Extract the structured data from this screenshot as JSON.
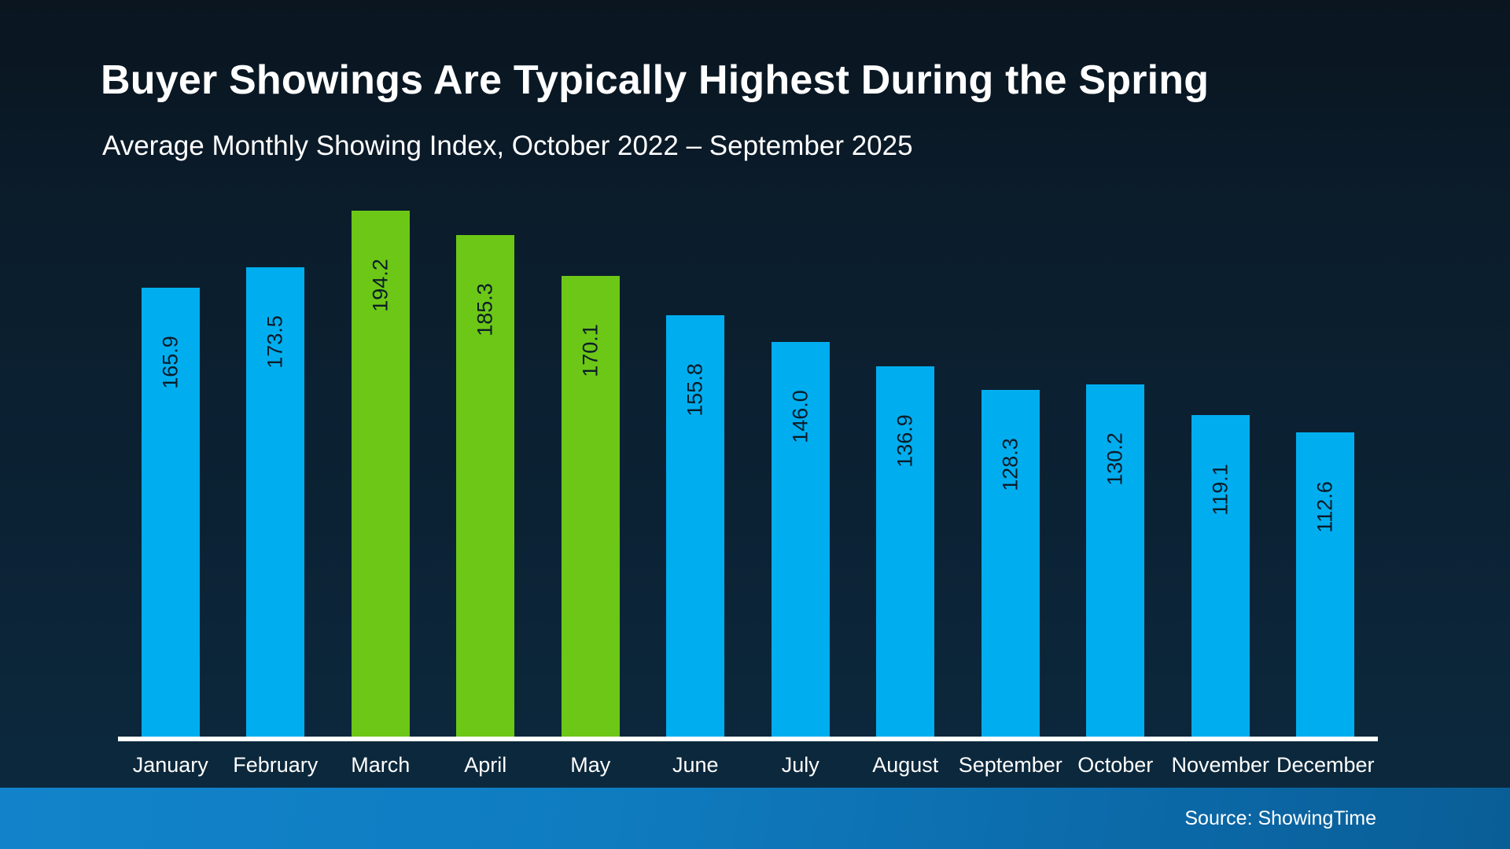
{
  "slide": {
    "title": "Buyer Showings Are Typically Highest During the Spring",
    "subtitle": "Average Monthly Showing Index, October 2022 – September 2025",
    "source": "Source: ShowingTime"
  },
  "colors": {
    "background_top": "#0a1520",
    "background_bottom": "#0d2a3f",
    "bar_blue": "#00aeef",
    "bar_green": "#6cc717",
    "value_label_dark": "#0b1c28",
    "axis_line_white": "#ffffff",
    "footer_gradient_left": "#1283ca",
    "footer_gradient_right": "#0a5e96",
    "text_white": "#ffffff"
  },
  "chart_data": {
    "type": "bar",
    "title": "Buyer Showings Are Typically Highest During the Spring",
    "subtitle": "Average Monthly Showing Index, October 2022 – September 2025",
    "categories": [
      "January",
      "February",
      "March",
      "April",
      "May",
      "June",
      "July",
      "August",
      "September",
      "October",
      "November",
      "December"
    ],
    "values": [
      165.9,
      173.5,
      194.2,
      185.3,
      170.1,
      155.8,
      146.0,
      136.9,
      128.3,
      130.2,
      119.1,
      112.6
    ],
    "value_labels": [
      "165.9",
      "173.5",
      "194.2",
      "185.3",
      "170.1",
      "155.8",
      "146.0",
      "136.9",
      "128.3",
      "130.2",
      "119.1",
      "112.6"
    ],
    "bar_colors": [
      "#00aeef",
      "#00aeef",
      "#6cc717",
      "#6cc717",
      "#6cc717",
      "#00aeef",
      "#00aeef",
      "#00aeef",
      "#00aeef",
      "#00aeef",
      "#00aeef",
      "#00aeef"
    ],
    "highlighted_categories": [
      "March",
      "April",
      "May"
    ],
    "value_label_position": "inside-top, rotated 90° counterclockwise",
    "xlabel": "",
    "ylabel": "",
    "ylim": [
      0,
      200
    ],
    "grid": false,
    "legend": "none",
    "source": "Source: ShowingTime"
  }
}
